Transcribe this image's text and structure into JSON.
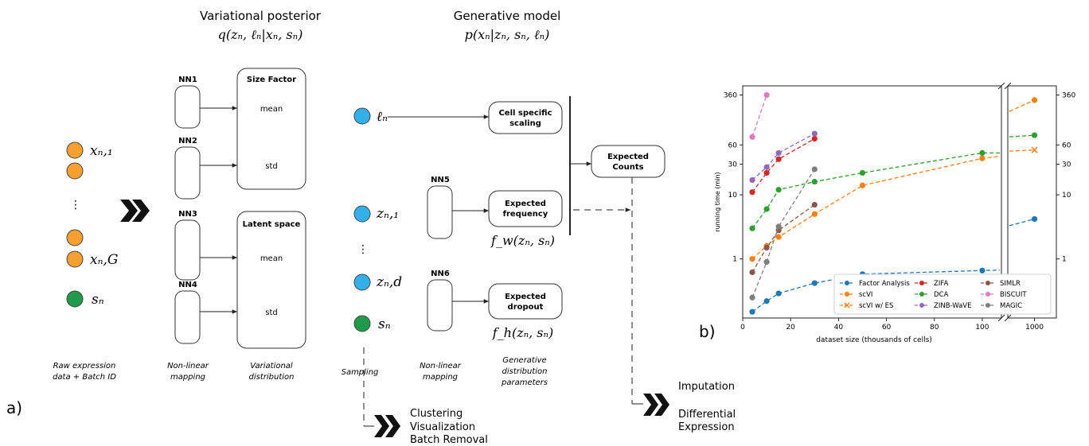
{
  "panel_a": {
    "label": "a)",
    "headers": {
      "posterior_title": "Variational posterior",
      "posterior_formula": "q(zₙ, ℓₙ|xₙ, sₙ)",
      "generative_title": "Generative model",
      "generative_formula": "p(xₙ|zₙ, sₙ, ℓₙ)"
    },
    "inputs": {
      "x_first": "xₙ,₁",
      "ellipsis": "⋮",
      "x_last": "xₙ,G",
      "s": "sₙ"
    },
    "networks": [
      "NN1",
      "NN2",
      "NN3",
      "NN4",
      "NN5",
      "NN6"
    ],
    "size_factor_box": {
      "title": "Size Factor",
      "mean": "mean",
      "std": "std"
    },
    "latent_box": {
      "title": "Latent space",
      "mean": "mean",
      "std": "std"
    },
    "samples": {
      "ell": "ℓₙ",
      "z_first": "zₙ,₁",
      "ellipsis": "⋮",
      "z_last": "zₙ,d",
      "s": "sₙ"
    },
    "gen_boxes": {
      "cell_scaling": [
        "Cell specific",
        "scaling"
      ],
      "expected_frequency": [
        "Expected",
        "frequency"
      ],
      "expected_dropout": [
        "Expected",
        "dropout"
      ],
      "expected_counts": [
        "Expected",
        "Counts"
      ]
    },
    "gen_functions": {
      "fw": "f_w(zₙ, sₙ)",
      "fh": "f_h(zₙ, sₙ)"
    },
    "captions": {
      "raw": [
        "Raw expression",
        "data + Batch ID"
      ],
      "nonlinear_1": [
        "Non-linear",
        "mapping"
      ],
      "variational": [
        "Variational",
        "distribution"
      ],
      "sampling": [
        "Sampling"
      ],
      "nonlinear_2": [
        "Non-linear",
        "mapping"
      ],
      "generative": [
        "Generative",
        "distribution",
        "parameters"
      ]
    },
    "outputs": {
      "left": [
        "Clustering",
        "Visualization",
        "Batch Removal"
      ],
      "right": [
        "Imputation",
        "Differential",
        "Expression"
      ]
    },
    "colors": {
      "orange": "#f5a030",
      "blue": "#33b0ea",
      "green": "#1f9a4b"
    }
  },
  "panel_b": {
    "label": "b)"
  },
  "chart_data": {
    "type": "line",
    "xlabel": "dataset size (thousands of cells)",
    "ylabel": "running time (min)",
    "y_scale": "log",
    "ylim": [
      0.12,
      500
    ],
    "x_ticks_main": [
      0,
      20,
      40,
      60,
      80,
      100
    ],
    "x_ticks_break": [
      1000
    ],
    "y_tick_labels": [
      "1",
      "10",
      "30",
      "60",
      "360"
    ],
    "y_tick_values": [
      1,
      10,
      30,
      60,
      360
    ],
    "axis_break": true,
    "grid": false,
    "legend": "lower-right",
    "series": [
      {
        "name": "Factor Analysis",
        "color": "#1f77b4",
        "marker": "o",
        "x": [
          4,
          10,
          15,
          30,
          50,
          100,
          1000
        ],
        "y": [
          0.15,
          0.22,
          0.29,
          0.42,
          0.58,
          0.66,
          4.2
        ],
        "tail_before_break": 0.67,
        "tail_after_break": 3.3
      },
      {
        "name": "scVI",
        "color": "#ff7f0e",
        "marker": "o",
        "x": [
          4,
          10,
          15,
          30,
          50,
          100,
          1000
        ],
        "y": [
          1.0,
          1.6,
          2.2,
          5.0,
          14.0,
          37.0,
          300
        ],
        "tail_before_break": 40,
        "tail_after_break": 200
      },
      {
        "name": "scVI w/ ES",
        "color": "#ff7f0e",
        "marker": "x",
        "x": [
          1000
        ],
        "y": [
          50
        ],
        "tail_before_break": null,
        "tail_after_break": 48
      },
      {
        "name": "ZIFA",
        "color": "#d62728",
        "marker": "o",
        "x": [
          4,
          10,
          15,
          30
        ],
        "y": [
          11,
          22,
          36,
          75
        ],
        "tail_before_break": null,
        "tail_after_break": null
      },
      {
        "name": "DCA",
        "color": "#2ca02c",
        "marker": "o",
        "x": [
          4,
          10,
          15,
          30,
          50,
          100,
          1000
        ],
        "y": [
          3.0,
          6.0,
          12.0,
          16.0,
          22.0,
          45.0,
          85
        ],
        "tail_before_break": 45,
        "tail_after_break": 80
      },
      {
        "name": "ZINB-WaVE",
        "color": "#9467bd",
        "marker": "o",
        "x": [
          4,
          10,
          15,
          30
        ],
        "y": [
          17,
          27,
          45,
          90
        ],
        "tail_before_break": null,
        "tail_after_break": null
      },
      {
        "name": "SIMLR",
        "color": "#8c564b",
        "marker": "o",
        "x": [
          4,
          10,
          15,
          30
        ],
        "y": [
          0.62,
          1.5,
          2.8,
          7.0
        ],
        "tail_before_break": null,
        "tail_after_break": null
      },
      {
        "name": "BISCUIT",
        "color": "#e377c2",
        "marker": "o",
        "x": [
          4,
          10
        ],
        "y": [
          80,
          360
        ],
        "tail_before_break": null,
        "tail_after_break": null
      },
      {
        "name": "MAGIC",
        "color": "#7f7f7f",
        "marker": "o",
        "x": [
          4,
          10,
          15,
          30
        ],
        "y": [
          0.25,
          0.9,
          3.2,
          25
        ],
        "tail_before_break": null,
        "tail_after_break": null
      }
    ]
  }
}
